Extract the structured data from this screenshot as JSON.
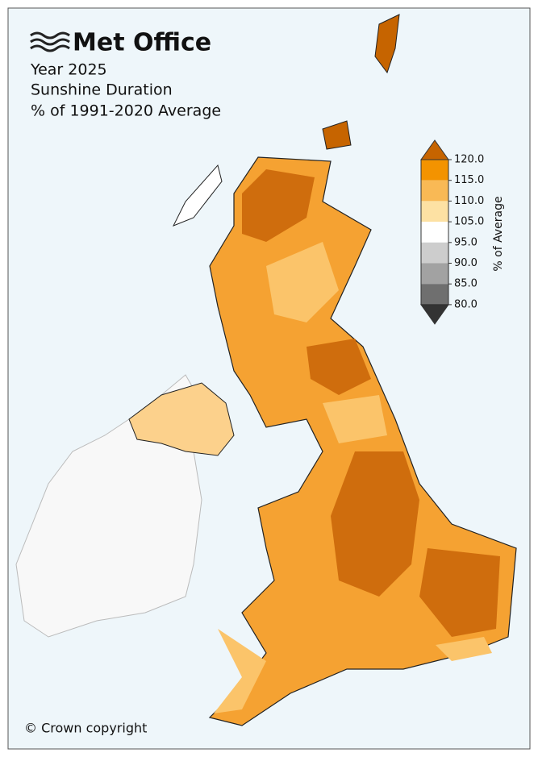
{
  "logo": "Met Office",
  "title_lines": [
    "Year 2025",
    "Sunshine Duration",
    "% of 1991-2020 Average"
  ],
  "colorbar": {
    "label": "% of Average",
    "ticks": [
      {
        "value": 120,
        "label": "120.0"
      },
      {
        "value": 115,
        "label": "115.0"
      },
      {
        "value": 110,
        "label": "110.0"
      },
      {
        "value": 105,
        "label": "105.0"
      },
      {
        "value": 95,
        "label": "95.0"
      },
      {
        "value": 90,
        "label": "90.0"
      },
      {
        "value": 85,
        "label": "85.0"
      },
      {
        "value": 80,
        "label": "80.0"
      }
    ],
    "colors": [
      "#c66400",
      "#f39300",
      "#f9b955",
      "#fde1a3",
      "#ffffff",
      "#cdcdcd",
      "#a2a2a2",
      "#6f6f6f",
      "#333333"
    ]
  },
  "copyright": "© Crown copyright"
}
